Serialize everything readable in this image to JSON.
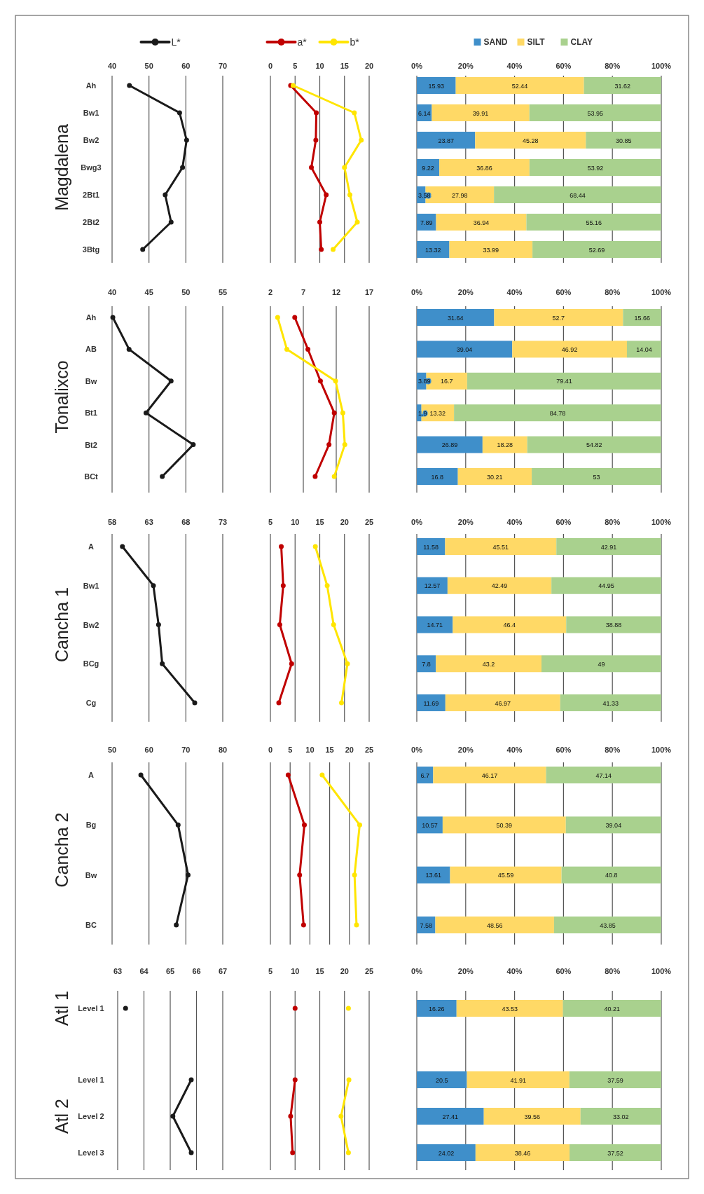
{
  "chart_data": [
    {
      "type": "line",
      "orientation": "horizontal",
      "ylabel": "Magdalena",
      "categories": [
        "Ah",
        "Bw1",
        "Bw2",
        "Bwg3",
        "2Bt1",
        "2Bt2",
        "3Btg"
      ],
      "xlim": [
        40,
        70
      ],
      "xticks": [
        40,
        50,
        60,
        70
      ],
      "grid": "x",
      "marker": "circle",
      "legend": "top",
      "series": [
        {
          "name": "L*",
          "color": "#1a1a1a",
          "values": [
            44.7,
            58.3,
            60.2,
            59.1,
            54.4,
            56.0,
            48.3
          ]
        }
      ]
    },
    {
      "type": "line",
      "orientation": "horizontal",
      "categories": [
        null,
        null,
        null,
        null,
        null,
        null,
        null
      ],
      "tick_labels": "x",
      "xlim": [
        0,
        20
      ],
      "xticks": [
        0,
        5,
        10,
        15,
        20
      ],
      "grid": "x",
      "marker": "circle",
      "legend": "top",
      "series": [
        {
          "name": "a*",
          "color": "#c00000",
          "values": [
            4.1,
            9.3,
            9.2,
            8.3,
            11.3,
            10.0,
            10.3
          ]
        },
        {
          "name": "b*",
          "color": "#ffe500",
          "values": [
            4.6,
            17.0,
            18.4,
            15.0,
            16.1,
            17.6,
            12.7
          ]
        }
      ]
    },
    {
      "type": "bar",
      "orientation": "horizontal",
      "stacked": true,
      "data_labels": true,
      "categories": [
        null,
        null,
        null,
        null,
        null,
        null,
        null
      ],
      "tick_labels": "x",
      "xlim": [
        0,
        100
      ],
      "xticks": [
        {
          "value": 0,
          "label": "0%"
        },
        {
          "value": 20,
          "label": "20%"
        },
        {
          "value": 40,
          "label": "40%"
        },
        {
          "value": 60,
          "label": "60%"
        },
        {
          "value": 80,
          "label": "80%"
        },
        {
          "value": 100,
          "label": "100%"
        }
      ],
      "grid": "x",
      "legend": "top",
      "series": [
        {
          "name": "SAND",
          "color": "#3f8fca",
          "values": [
            15.93,
            6.14,
            23.87,
            9.22,
            3.58,
            7.89,
            13.32
          ]
        },
        {
          "name": "SILT",
          "color": "#ffd966",
          "values": [
            52.44,
            39.91,
            45.28,
            36.86,
            27.98,
            36.94,
            33.99
          ]
        },
        {
          "name": "CLAY",
          "color": "#a9d18e",
          "values": [
            31.62,
            53.95,
            30.85,
            53.92,
            68.44,
            55.16,
            52.69
          ]
        }
      ]
    },
    {
      "type": "line",
      "orientation": "horizontal",
      "ylabel": "Tonalixco",
      "categories": [
        "Ah",
        "AB",
        "Bw",
        "Bt1",
        "Bt2",
        "BCt"
      ],
      "xlim": [
        40,
        55
      ],
      "xticks": [
        40,
        45,
        50,
        55
      ],
      "grid": "x",
      "marker": "circle",
      "series": [
        {
          "color": "#1a1a1a",
          "values": [
            40.1,
            42.3,
            48.0,
            44.6,
            51.0,
            46.8
          ]
        }
      ]
    },
    {
      "type": "line",
      "orientation": "horizontal",
      "categories": [
        null,
        null,
        null,
        null,
        null,
        null
      ],
      "tick_labels": "x",
      "xlim": [
        2,
        17
      ],
      "xticks": [
        2,
        7,
        12,
        17
      ],
      "grid": "x",
      "marker": "circle",
      "series": [
        {
          "color": "#c00000",
          "values": [
            5.7,
            7.7,
            9.6,
            11.7,
            10.9,
            8.8
          ]
        },
        {
          "color": "#ffe500",
          "values": [
            3.1,
            4.5,
            11.9,
            13.0,
            13.3,
            11.7
          ]
        }
      ]
    },
    {
      "type": "bar",
      "orientation": "horizontal",
      "stacked": true,
      "data_labels": true,
      "categories": [
        null,
        null,
        null,
        null,
        null,
        null
      ],
      "tick_labels": "x",
      "xlim": [
        0,
        100
      ],
      "xticks": [
        {
          "value": 0,
          "label": "0%"
        },
        {
          "value": 20,
          "label": "20%"
        },
        {
          "value": 40,
          "label": "40%"
        },
        {
          "value": 60,
          "label": "60%"
        },
        {
          "value": 80,
          "label": "80%"
        },
        {
          "value": 100,
          "label": "100%"
        }
      ],
      "grid": "x",
      "series": [
        {
          "color": "#3f8fca",
          "values": [
            31.64,
            39.04,
            3.89,
            1.9,
            26.89,
            16.8
          ]
        },
        {
          "color": "#ffd966",
          "values": [
            52.7,
            46.92,
            16.7,
            13.32,
            18.28,
            30.21
          ]
        },
        {
          "color": "#a9d18e",
          "values": [
            15.66,
            14.04,
            79.41,
            84.78,
            54.82,
            53
          ]
        }
      ]
    },
    {
      "type": "line",
      "orientation": "horizontal",
      "ylabel": "Cancha 1",
      "categories": [
        "A",
        "Bw1",
        "Bw2",
        "BCg",
        "Cg"
      ],
      "xlim": [
        58,
        73
      ],
      "xticks": [
        58,
        63,
        68,
        73
      ],
      "grid": "x",
      "marker": "circle",
      "series": [
        {
          "color": "#1a1a1a",
          "values": [
            59.4,
            63.6,
            64.3,
            64.8,
            69.2
          ]
        }
      ]
    },
    {
      "type": "line",
      "orientation": "horizontal",
      "categories": [
        null,
        null,
        null,
        null,
        null
      ],
      "tick_labels": "x",
      "xlim": [
        5,
        25
      ],
      "xticks": [
        5,
        10,
        15,
        20,
        25
      ],
      "grid": "x",
      "marker": "circle",
      "series": [
        {
          "color": "#c00000",
          "values": [
            7.2,
            7.6,
            6.9,
            9.3,
            6.7
          ]
        },
        {
          "color": "#ffe500",
          "values": [
            14.1,
            16.5,
            17.8,
            20.6,
            19.4
          ]
        }
      ]
    },
    {
      "type": "bar",
      "orientation": "horizontal",
      "stacked": true,
      "data_labels": true,
      "categories": [
        null,
        null,
        null,
        null,
        null
      ],
      "tick_labels": "x",
      "xlim": [
        0,
        100
      ],
      "xticks": [
        {
          "value": 0,
          "label": "0%"
        },
        {
          "value": 20,
          "label": "20%"
        },
        {
          "value": 40,
          "label": "40%"
        },
        {
          "value": 60,
          "label": "60%"
        },
        {
          "value": 80,
          "label": "80%"
        },
        {
          "value": 100,
          "label": "100%"
        }
      ],
      "grid": "x",
      "series": [
        {
          "color": "#3f8fca",
          "values": [
            11.58,
            12.57,
            14.71,
            7.8,
            11.69
          ]
        },
        {
          "color": "#ffd966",
          "values": [
            45.51,
            42.49,
            46.4,
            43.2,
            46.97
          ]
        },
        {
          "color": "#a9d18e",
          "values": [
            42.91,
            44.95,
            38.88,
            49,
            41.33
          ]
        }
      ]
    },
    {
      "type": "line",
      "orientation": "horizontal",
      "ylabel": "Cancha 2",
      "categories": [
        "A",
        "Bg",
        "Bw",
        "BC"
      ],
      "xlim": [
        50,
        80
      ],
      "xticks": [
        50,
        60,
        70,
        80
      ],
      "grid": "x",
      "marker": "circle",
      "series": [
        {
          "color": "#1a1a1a",
          "values": [
            57.8,
            67.9,
            70.6,
            67.4
          ]
        }
      ]
    },
    {
      "type": "line",
      "orientation": "horizontal",
      "categories": [
        null,
        null,
        null,
        null
      ],
      "tick_labels": "x",
      "xlim": [
        0,
        25
      ],
      "xticks": [
        0,
        5,
        10,
        15,
        20,
        25
      ],
      "grid": "x",
      "marker": "circle",
      "series": [
        {
          "color": "#c00000",
          "values": [
            4.5,
            8.6,
            7.4,
            8.4
          ]
        },
        {
          "color": "#ffe500",
          "values": [
            13.1,
            22.6,
            21.3,
            21.8
          ]
        }
      ]
    },
    {
      "type": "bar",
      "orientation": "horizontal",
      "stacked": true,
      "data_labels": true,
      "categories": [
        null,
        null,
        null,
        null
      ],
      "tick_labels": "x",
      "xlim": [
        0,
        100
      ],
      "xticks": [
        {
          "value": 0,
          "label": "0%"
        },
        {
          "value": 20,
          "label": "20%"
        },
        {
          "value": 40,
          "label": "40%"
        },
        {
          "value": 60,
          "label": "60%"
        },
        {
          "value": 80,
          "label": "80%"
        },
        {
          "value": 100,
          "label": "100%"
        }
      ],
      "grid": "x",
      "series": [
        {
          "color": "#3f8fca",
          "values": [
            6.7,
            10.57,
            13.61,
            7.58
          ]
        },
        {
          "color": "#ffd966",
          "values": [
            46.17,
            50.39,
            45.59,
            48.56
          ]
        },
        {
          "color": "#a9d18e",
          "values": [
            47.14,
            39.04,
            40.8,
            43.85
          ]
        }
      ]
    },
    {
      "type": "line",
      "orientation": "horizontal",
      "ylabel": "Atl 1",
      "categories": [
        "Level 1"
      ],
      "xlim": [
        63,
        67
      ],
      "xticks": [
        63,
        64,
        65,
        66,
        67
      ],
      "grid": "x",
      "marker": "circle",
      "series": [
        {
          "color": "#1a1a1a",
          "values": [
            63.3
          ]
        }
      ]
    },
    {
      "type": "line",
      "orientation": "horizontal",
      "categories": [
        null
      ],
      "tick_labels": "x",
      "xlim": [
        5,
        25
      ],
      "xticks": [
        5,
        10,
        15,
        20,
        25
      ],
      "grid": "x",
      "marker": "circle",
      "series": [
        {
          "color": "#c00000",
          "values": [
            10.0
          ]
        },
        {
          "color": "#ffe500",
          "values": [
            20.8
          ]
        }
      ]
    },
    {
      "type": "bar",
      "orientation": "horizontal",
      "stacked": true,
      "data_labels": true,
      "categories": [
        null
      ],
      "tick_labels": "x",
      "xlim": [
        0,
        100
      ],
      "xticks": [
        {
          "value": 0,
          "label": "0%"
        },
        {
          "value": 20,
          "label": "20%"
        },
        {
          "value": 40,
          "label": "40%"
        },
        {
          "value": 60,
          "label": "60%"
        },
        {
          "value": 80,
          "label": "80%"
        },
        {
          "value": 100,
          "label": "100%"
        }
      ],
      "grid": "x",
      "series": [
        {
          "color": "#3f8fca",
          "values": [
            16.26
          ]
        },
        {
          "color": "#ffd966",
          "values": [
            43.53
          ]
        },
        {
          "color": "#a9d18e",
          "values": [
            40.21
          ]
        }
      ]
    },
    {
      "type": "line",
      "orientation": "horizontal",
      "ylabel": "Atl 2",
      "categories": [
        "Level 1",
        "Level 2",
        "Level 3"
      ],
      "tick_labels": "y",
      "xlim": [
        63,
        67
      ],
      "xticks": [
        {
          "value": 63,
          "label": null
        },
        {
          "value": 64,
          "label": null
        },
        {
          "value": 65,
          "label": null
        },
        {
          "value": 66,
          "label": null
        },
        {
          "value": 67,
          "label": null
        }
      ],
      "grid": "x",
      "marker": "circle",
      "series": [
        {
          "color": "#1a1a1a",
          "values": [
            65.8,
            65.1,
            65.8
          ]
        }
      ]
    },
    {
      "type": "line",
      "orientation": "horizontal",
      "categories": [
        null,
        null,
        null
      ],
      "tick_labels": false,
      "xlim": [
        5,
        25
      ],
      "xticks": [
        {
          "value": 5,
          "label": null
        },
        {
          "value": 10,
          "label": null
        },
        {
          "value": 15,
          "label": null
        },
        {
          "value": 20,
          "label": null
        },
        {
          "value": 25,
          "label": null
        }
      ],
      "grid": "x",
      "marker": "circle",
      "series": [
        {
          "color": "#c00000",
          "values": [
            10.0,
            9.1,
            9.5
          ]
        },
        {
          "color": "#ffe500",
          "values": [
            20.9,
            19.3,
            20.8
          ]
        }
      ]
    },
    {
      "type": "bar",
      "orientation": "horizontal",
      "stacked": true,
      "data_labels": true,
      "categories": [
        null,
        null,
        null
      ],
      "tick_labels": false,
      "xlim": [
        0,
        100
      ],
      "xticks": [
        {
          "value": 0,
          "label": null
        },
        {
          "value": 20,
          "label": null
        },
        {
          "value": 40,
          "label": null
        },
        {
          "value": 60,
          "label": null
        },
        {
          "value": 80,
          "label": null
        },
        {
          "value": 100,
          "label": null
        }
      ],
      "grid": "x",
      "series": [
        {
          "color": "#3f8fca",
          "values": [
            20.5,
            27.41,
            24.02
          ]
        },
        {
          "color": "#ffd966",
          "values": [
            41.91,
            39.56,
            38.46
          ]
        },
        {
          "color": "#a9d18e",
          "values": [
            37.59,
            33.02,
            37.52
          ]
        }
      ]
    }
  ]
}
